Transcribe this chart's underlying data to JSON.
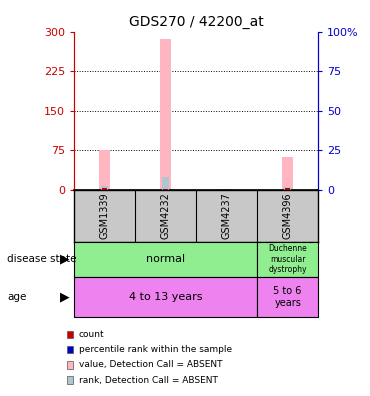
{
  "title": "GDS270 / 42200_at",
  "samples": [
    "GSM1339",
    "GSM4232",
    "GSM4237",
    "GSM4396"
  ],
  "pink_bar_values": [
    75,
    287,
    2,
    62
  ],
  "blue_bar_values": [
    7,
    25,
    0,
    5
  ],
  "red_bar_values": [
    4,
    2,
    0,
    4
  ],
  "left_yticks": [
    0,
    75,
    150,
    225,
    300
  ],
  "right_yticks": [
    0,
    25,
    50,
    75,
    100
  ],
  "right_yticklabels": [
    "0",
    "25",
    "50",
    "75",
    "100%"
  ],
  "ylim_left": [
    0,
    300
  ],
  "ylim_right": [
    0,
    100
  ],
  "bar_bg_color": "#c8c8c8",
  "plot_bg_color": "#ffffff",
  "left_axis_color": "#cc0000",
  "right_axis_color": "#0000cc",
  "pink_bar_color": "#ffb6c1",
  "blue_bar_color": "#aec6cf",
  "red_bar_color": "#cc0000",
  "blue_sq_color": "#0000cc",
  "normal_color": "#90ee90",
  "duchenne_color": "#90ee90",
  "age1_color": "#ee82ee",
  "age2_color": "#ee82ee",
  "legend_items": [
    {
      "color": "#cc0000",
      "label": "count"
    },
    {
      "color": "#0000cc",
      "label": "percentile rank within the sample"
    },
    {
      "color": "#ffb6c1",
      "label": "value, Detection Call = ABSENT"
    },
    {
      "color": "#aec6cf",
      "label": "rank, Detection Call = ABSENT"
    }
  ]
}
